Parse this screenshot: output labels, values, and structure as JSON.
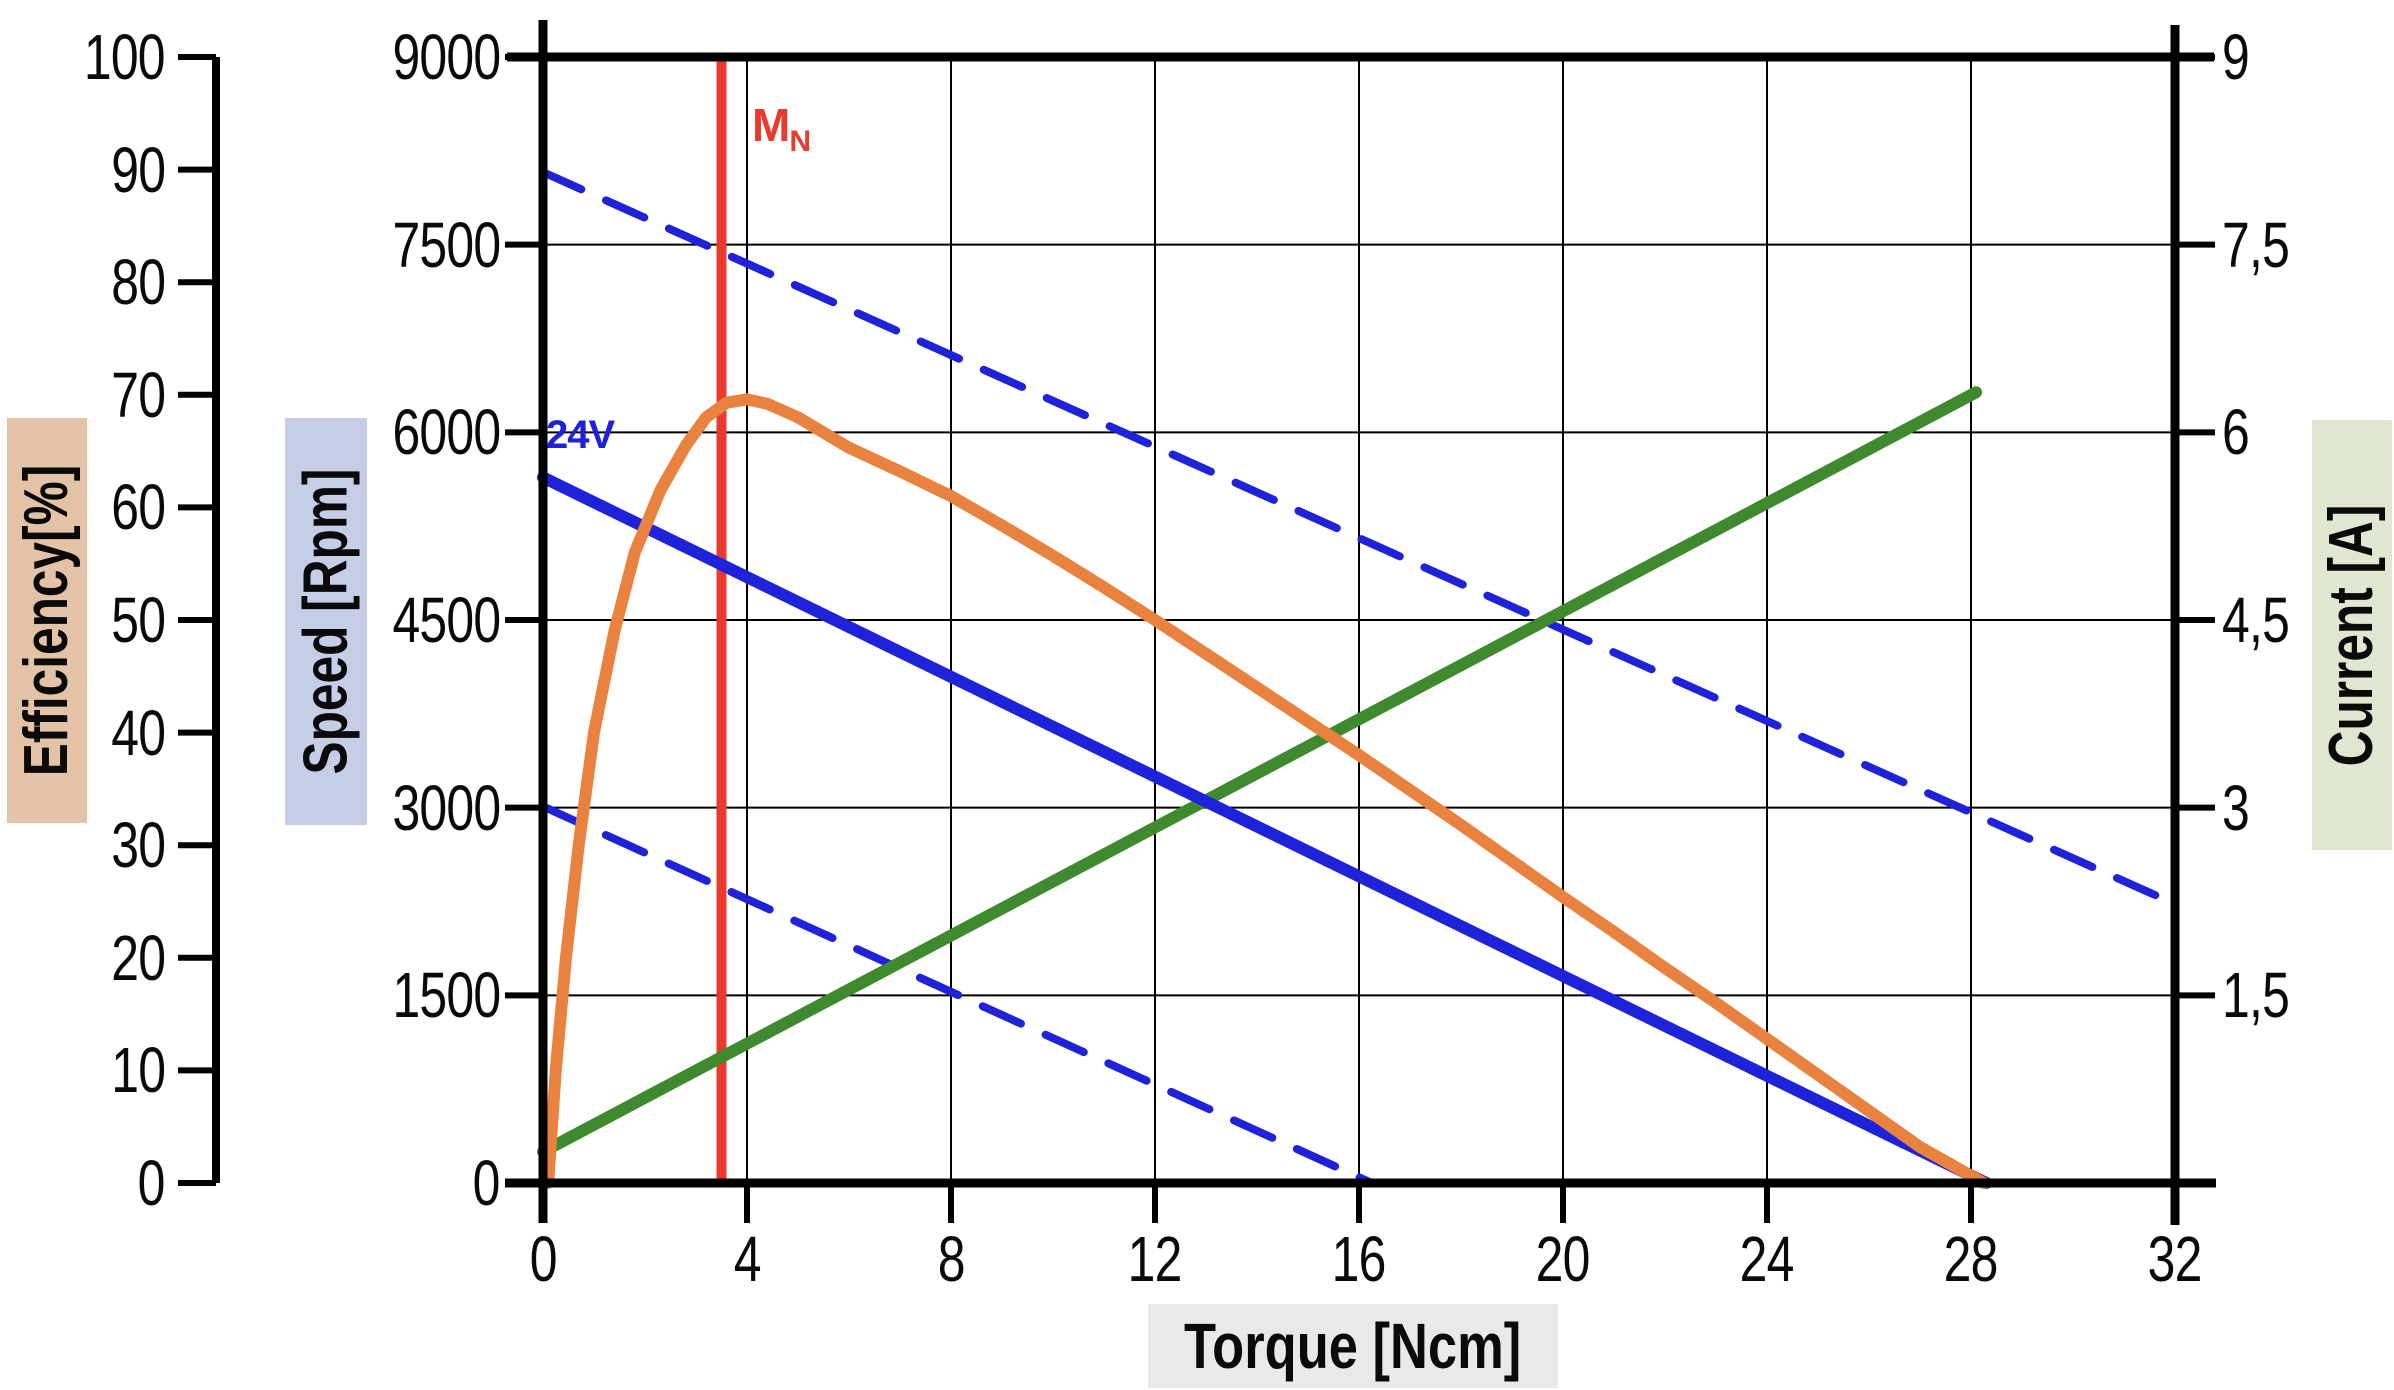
{
  "chart_data": {
    "type": "line",
    "title": "",
    "grid": "on",
    "legend": "none",
    "x_axis": {
      "label": "Torque [Ncm]",
      "min": 0,
      "max": 32,
      "ticks": [
        0,
        4,
        8,
        12,
        16,
        20,
        24,
        28,
        32
      ],
      "tick_labels": [
        "0",
        "4",
        "8",
        "12",
        "16",
        "20",
        "24",
        "28",
        "32"
      ],
      "gridlines_at": [
        4,
        8,
        12,
        16,
        20,
        24,
        28
      ]
    },
    "axes": {
      "efficiency": {
        "label": "Efficiency[%]",
        "min": 0,
        "max": 100,
        "ticks": [
          100,
          90,
          80,
          70,
          60,
          50,
          40,
          30,
          20,
          10,
          0
        ],
        "tick_labels": [
          "100",
          "90",
          "80",
          "70",
          "60",
          "50",
          "40",
          "30",
          "20",
          "10",
          "0"
        ]
      },
      "speed": {
        "label": "Speed [Rpm]",
        "min": 0,
        "max": 9000,
        "ticks": [
          9000,
          7500,
          6000,
          4500,
          3000,
          1500,
          0
        ],
        "tick_labels": [
          "9000",
          "7500",
          "6000",
          "4500",
          "3000",
          "1500",
          "0"
        ],
        "gridlines_at": [
          1500,
          3000,
          4500,
          6000,
          7500
        ]
      },
      "current": {
        "label": "Current [A]",
        "min": 0,
        "max": 9,
        "ticks": [
          9,
          7.5,
          6,
          4.5,
          3,
          1.5
        ],
        "tick_labels": [
          "9",
          "7,5",
          "6",
          "4,5",
          "3",
          "1,5"
        ]
      }
    },
    "annotations": {
      "voltage_label": "24V",
      "nominal_torque_label": "M",
      "nominal_torque_sub": "N",
      "nominal_torque": 3.5
    },
    "series": [
      {
        "name": "speed-vs-torque-24V",
        "axis": "speed",
        "style": "solid",
        "color": "#1e22d8",
        "points": [
          [
            0,
            5640
          ],
          [
            28.3,
            0
          ]
        ]
      },
      {
        "name": "speed-vs-torque-upper-voltage-dashed",
        "axis": "speed",
        "style": "dashed",
        "color": "#1e22d8",
        "points": [
          [
            0,
            8080
          ],
          [
            32,
            2230
          ]
        ]
      },
      {
        "name": "speed-vs-torque-lower-voltage-dashed",
        "axis": "speed",
        "style": "dashed",
        "color": "#1e22d8",
        "points": [
          [
            0,
            3010
          ],
          [
            16.25,
            0
          ]
        ]
      },
      {
        "name": "current-vs-torque",
        "axis": "current",
        "style": "solid",
        "color": "#3f8a2e",
        "points": [
          [
            0,
            0.25
          ],
          [
            28.1,
            6.32
          ]
        ]
      },
      {
        "name": "efficiency-vs-torque",
        "axis": "efficiency",
        "style": "solid",
        "color": "#e8823e",
        "points": [
          [
            0.1,
            0
          ],
          [
            0.25,
            10
          ],
          [
            0.45,
            20
          ],
          [
            0.7,
            30
          ],
          [
            1.0,
            40
          ],
          [
            1.4,
            49
          ],
          [
            1.8,
            56
          ],
          [
            2.3,
            61.5
          ],
          [
            2.8,
            65.5
          ],
          [
            3.2,
            68
          ],
          [
            3.6,
            69.3
          ],
          [
            4.0,
            69.6
          ],
          [
            4.4,
            69.2
          ],
          [
            5,
            68
          ],
          [
            6,
            65.3
          ],
          [
            7,
            63.2
          ],
          [
            8,
            61
          ],
          [
            9,
            58.4
          ],
          [
            10,
            55.7
          ],
          [
            11,
            52.9
          ],
          [
            12,
            50
          ],
          [
            13,
            47
          ],
          [
            14,
            44
          ],
          [
            15,
            41
          ],
          [
            16,
            38
          ],
          [
            17,
            34.9
          ],
          [
            18,
            31.8
          ],
          [
            19,
            28.6
          ],
          [
            20,
            25.4
          ],
          [
            21,
            22.3
          ],
          [
            22,
            19.1
          ],
          [
            23,
            16
          ],
          [
            24,
            12.8
          ],
          [
            25,
            9.6
          ],
          [
            26,
            6.4
          ],
          [
            27,
            3.2
          ],
          [
            28.25,
            0
          ]
        ]
      }
    ],
    "colors": {
      "line_blue": "#1e22d8",
      "line_orange": "#e8823e",
      "line_green": "#3f8a2e",
      "nominal_line_red": "#e73b2c",
      "axis_black": "#000000",
      "efficiency_title_bg": "#e3c2a6",
      "speed_title_bg": "#c5cde7",
      "current_title_bg": "#dfe7d0",
      "torque_title_bg": "#e9e9e9"
    }
  }
}
